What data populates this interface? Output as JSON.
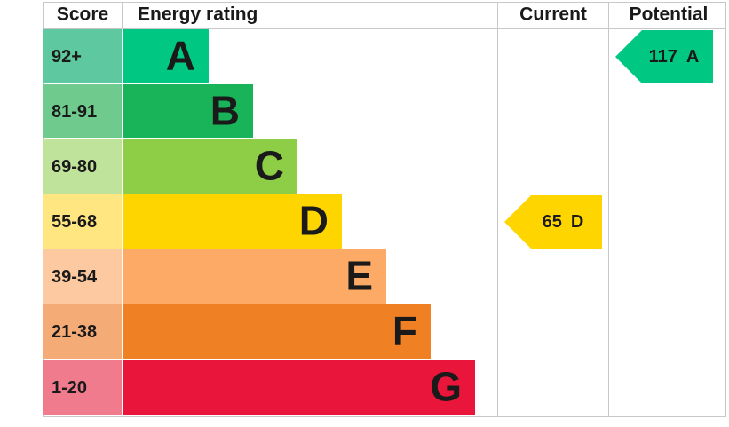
{
  "chart_data": {
    "type": "epc",
    "headers": [
      "Score",
      "Energy rating",
      "Current",
      "Potential"
    ],
    "bands": [
      {
        "range": "92+",
        "letter": "A",
        "color": "#00c781",
        "score_color": "#5ec8a0"
      },
      {
        "range": "81-91",
        "letter": "B",
        "color": "#19b459",
        "score_color": "#6fcb8d"
      },
      {
        "range": "69-80",
        "letter": "C",
        "color": "#8dce46",
        "score_color": "#c0e39b"
      },
      {
        "range": "55-68",
        "letter": "D",
        "color": "#ffd500",
        "score_color": "#ffe680"
      },
      {
        "range": "39-54",
        "letter": "E",
        "color": "#fcaa65",
        "score_color": "#fdc9a1"
      },
      {
        "range": "21-38",
        "letter": "F",
        "color": "#ef8023",
        "score_color": "#f4ab76"
      },
      {
        "range": "1-20",
        "letter": "G",
        "color": "#e9153b",
        "score_color": "#f07b8d"
      }
    ],
    "current": {
      "value": 65,
      "letter": "D"
    },
    "potential": {
      "value": 117,
      "letter": "A"
    }
  }
}
